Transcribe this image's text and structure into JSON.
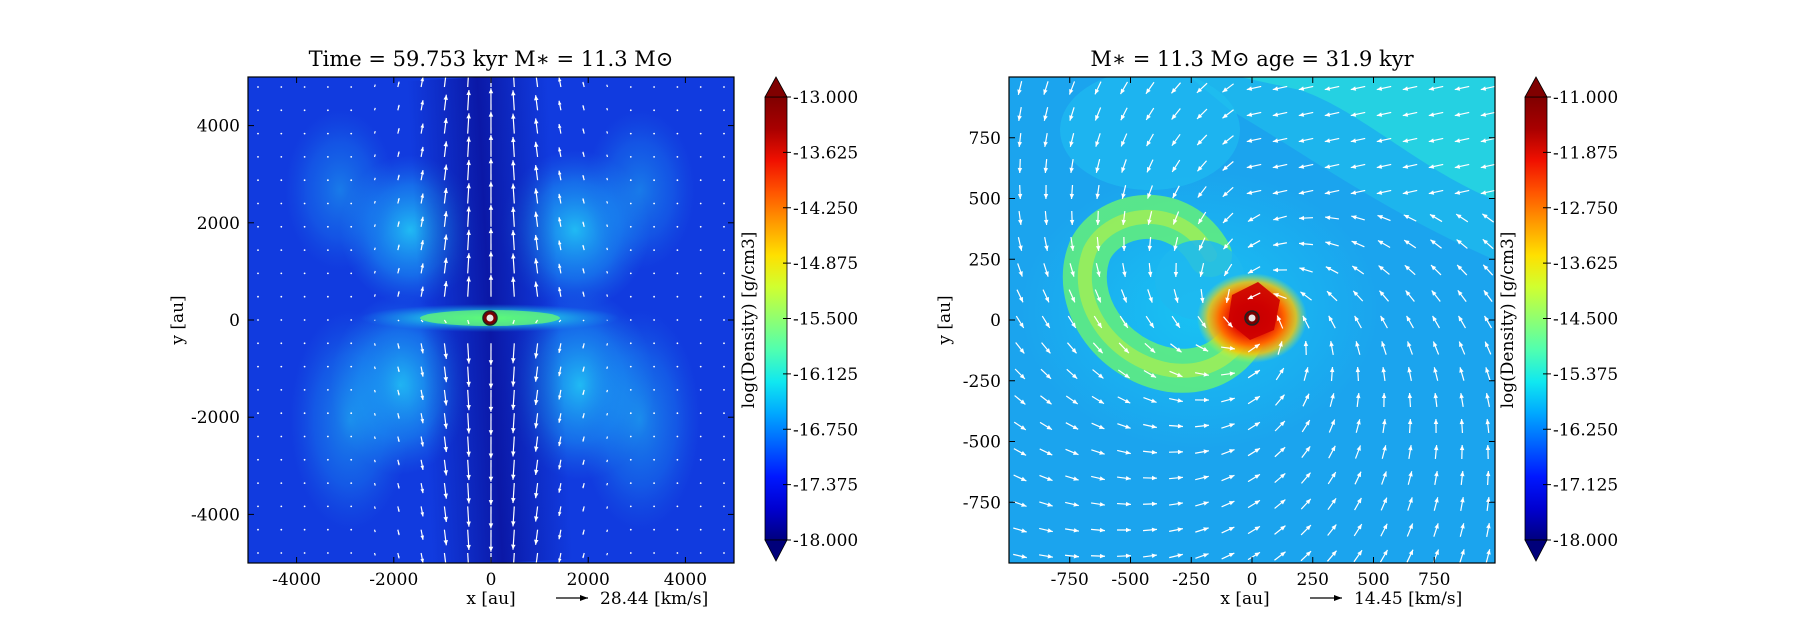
{
  "chart_data": [
    {
      "type": "heatmap",
      "title": "Time = 59.753 kyr    M∗ = 11.3 M⊙",
      "xlabel": "x [au]",
      "ylabel": "y [au]",
      "xlim": [
        -5000,
        5000
      ],
      "ylim": [
        -5000,
        5000
      ],
      "xticks": [
        -4000,
        -2000,
        0,
        2000,
        4000
      ],
      "yticks": [
        -4000,
        -2000,
        0,
        2000,
        4000
      ],
      "colorbar": {
        "label": "log(Density) [g/cm3]",
        "range": [
          -18.0,
          -13.0
        ],
        "ticks": [
          "-13.000",
          "-13.625",
          "-14.250",
          "-14.875",
          "-15.500",
          "-16.125",
          "-16.750",
          "-17.375",
          "-18.000"
        ]
      },
      "vector_key": {
        "value": 28.44,
        "label": "28.44 [km/s]"
      },
      "overlay": "velocity vectors",
      "grid": false
    },
    {
      "type": "heatmap",
      "title": "M∗ = 11.3 M⊙          age = 31.9 kyr",
      "xlabel": "x [au]",
      "ylabel": "y [au]",
      "xlim": [
        -1000,
        1000
      ],
      "ylim": [
        -1000,
        1000
      ],
      "xticks": [
        -750,
        -500,
        -250,
        0,
        250,
        500,
        750
      ],
      "yticks": [
        750,
        500,
        250,
        0,
        -250,
        -500,
        -750
      ],
      "colorbar": {
        "label": "log(Density) [g/cm3]",
        "range": [
          -18.0,
          -11.0
        ],
        "ticks": [
          "-11.000",
          "-11.875",
          "-12.750",
          "-13.625",
          "-14.500",
          "-15.375",
          "-16.250",
          "-17.125",
          "-18.000"
        ]
      },
      "vector_key": {
        "value": 14.45,
        "label": "14.45 [km/s]"
      },
      "overlay": "velocity vectors",
      "grid": false
    }
  ]
}
